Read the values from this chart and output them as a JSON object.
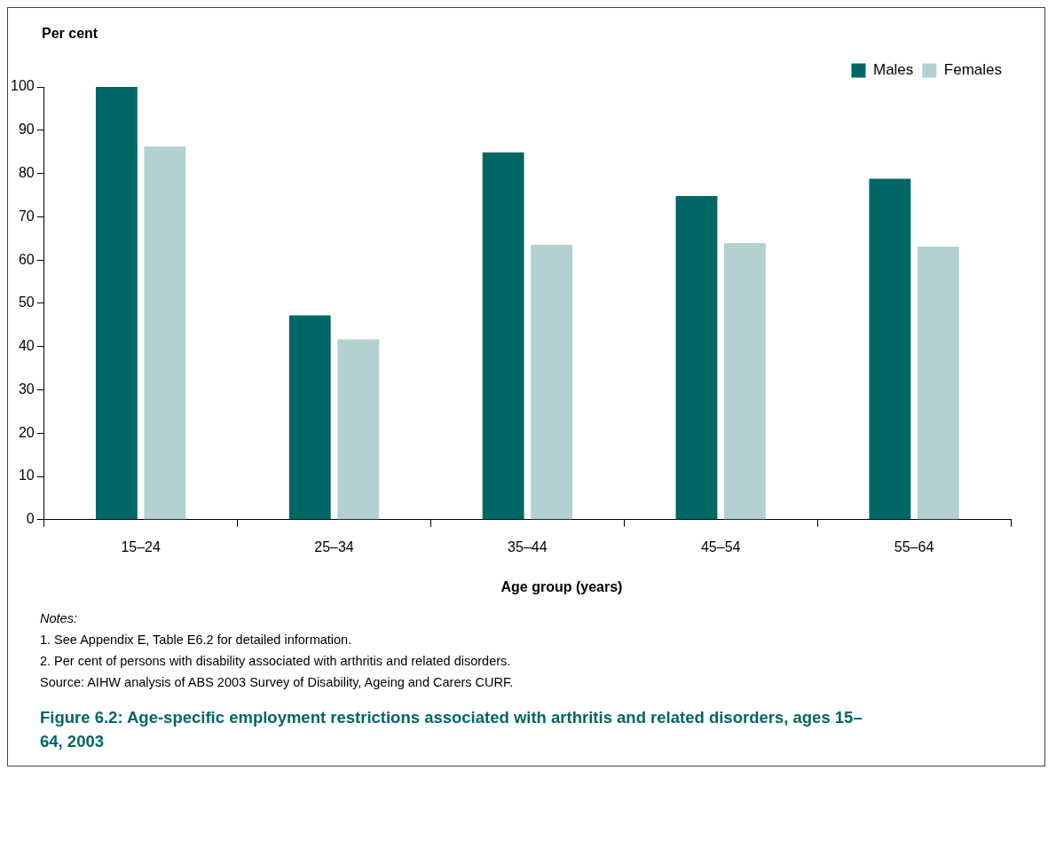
{
  "chart_data": {
    "type": "bar",
    "title": "Figure 6.2: Age-specific employment restrictions associated with arthritis and related disorders, ages 15–64, 2003",
    "ylabel": "Per cent",
    "xlabel": "Age group (years)",
    "categories": [
      "15–24",
      "25–34",
      "35–44",
      "45–54",
      "55–64"
    ],
    "series": [
      {
        "name": "Males",
        "color": "#006666",
        "values": [
          100,
          47.2,
          84.9,
          74.8,
          78.8
        ]
      },
      {
        "name": "Females",
        "color": "#b3d1d1",
        "values": [
          86.2,
          41.7,
          63.5,
          63.9,
          63.1
        ]
      }
    ],
    "ylim": [
      0,
      100
    ],
    "yticks": [
      0,
      10,
      20,
      30,
      40,
      50,
      60,
      70,
      80,
      90,
      100
    ],
    "grid": false,
    "legend": "top right",
    "annotations": [
      "Notes:",
      "1.  See Appendix E, Table E6.2 for detailed information.",
      "2.  Per cent of persons with disability associated with arthritis and related disorders.",
      "Source: AIHW analysis of ABS 2003 Survey of Disability, Ageing and Carers CURF."
    ]
  }
}
